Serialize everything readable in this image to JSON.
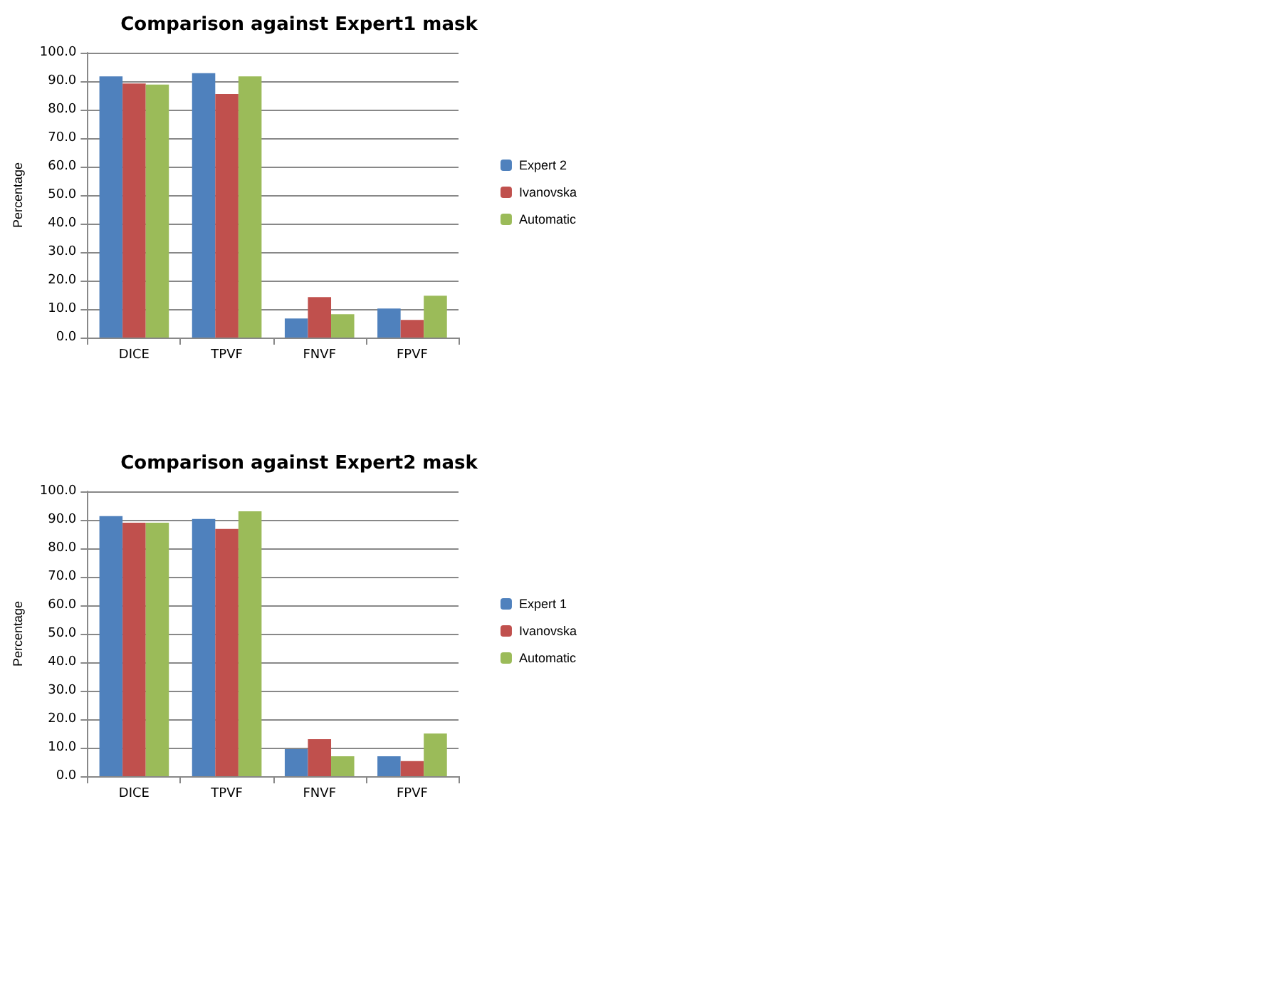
{
  "chart_data": [
    {
      "type": "bar",
      "title": "Comparison against Expert1 mask",
      "ylabel": "Percentage",
      "categories": [
        "DICE",
        "TPVF",
        "FNVF",
        "FPVF"
      ],
      "series": [
        {
          "name": "Expert 2",
          "color": "#4f81bd",
          "values": [
            91.7,
            92.8,
            6.7,
            10.2
          ]
        },
        {
          "name": "Ivanovska",
          "color": "#c0504d",
          "values": [
            89.2,
            85.5,
            14.2,
            6.2
          ]
        },
        {
          "name": "Automatic",
          "color": "#9bbb59",
          "values": [
            88.8,
            91.7,
            8.2,
            14.7
          ]
        }
      ],
      "ylim": [
        0,
        100
      ],
      "yticks": [
        {
          "value": 0,
          "label": "0.0"
        },
        {
          "value": 10,
          "label": "10.0"
        },
        {
          "value": 20,
          "label": "20.0"
        },
        {
          "value": 30,
          "label": "30.0"
        },
        {
          "value": 40,
          "label": "40.0"
        },
        {
          "value": 50,
          "label": "50.0"
        },
        {
          "value": 60,
          "label": "60.0"
        },
        {
          "value": 70,
          "label": "70.0"
        },
        {
          "value": 80,
          "label": "80.0"
        },
        {
          "value": 90,
          "label": "90.0"
        },
        {
          "value": 100,
          "label": "100.0"
        }
      ],
      "grid": "y",
      "legend": "right"
    },
    {
      "type": "bar",
      "title": "Comparison against Expert2 mask",
      "ylabel": "Percentage",
      "categories": [
        "DICE",
        "TPVF",
        "FNVF",
        "FPVF"
      ],
      "series": [
        {
          "name": "Expert 1",
          "color": "#4f81bd",
          "values": [
            91.3,
            90.3,
            9.5,
            7.0
          ]
        },
        {
          "name": "Ivanovska",
          "color": "#c0504d",
          "values": [
            89.0,
            86.8,
            13.0,
            5.3
          ]
        },
        {
          "name": "Automatic",
          "color": "#9bbb59",
          "values": [
            89.0,
            93.0,
            7.0,
            15.0
          ]
        }
      ],
      "ylim": [
        0,
        100
      ],
      "yticks": [
        {
          "value": 0,
          "label": "0.0"
        },
        {
          "value": 10,
          "label": "10.0"
        },
        {
          "value": 20,
          "label": "20.0"
        },
        {
          "value": 30,
          "label": "30.0"
        },
        {
          "value": 40,
          "label": "40.0"
        },
        {
          "value": 50,
          "label": "50.0"
        },
        {
          "value": 60,
          "label": "60.0"
        },
        {
          "value": 70,
          "label": "70.0"
        },
        {
          "value": 80,
          "label": "80.0"
        },
        {
          "value": 90,
          "label": "90.0"
        },
        {
          "value": 100,
          "label": "100.0"
        }
      ],
      "grid": "y",
      "legend": "right"
    }
  ]
}
